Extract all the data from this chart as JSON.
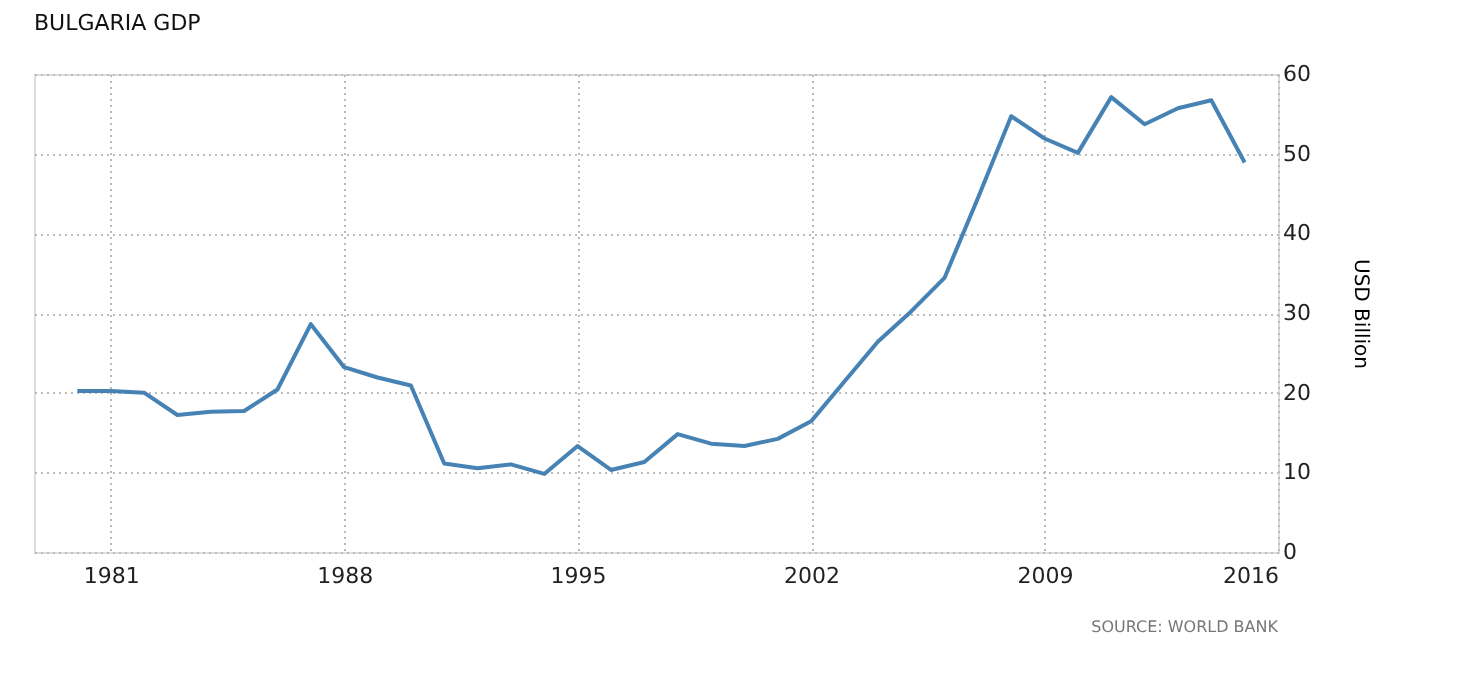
{
  "chart_data": {
    "type": "line",
    "title": "BULGARIA GDP",
    "ylabel": "USD Billion",
    "x": [
      1980,
      1981,
      1982,
      1983,
      1984,
      1985,
      1986,
      1987,
      1988,
      1989,
      1990,
      1991,
      1992,
      1993,
      1994,
      1995,
      1996,
      1997,
      1998,
      1999,
      2000,
      2001,
      2002,
      2003,
      2004,
      2005,
      2006,
      2007,
      2008,
      2009,
      2010,
      2011,
      2012,
      2013,
      2014,
      2015
    ],
    "series": [
      {
        "color": "#4682b4",
        "values": [
          20.2,
          20.2,
          20.0,
          17.2,
          17.6,
          17.7,
          20.4,
          28.6,
          23.2,
          21.9,
          20.9,
          11.1,
          10.5,
          11.0,
          9.8,
          13.3,
          10.3,
          11.3,
          14.8,
          13.6,
          13.3,
          14.2,
          16.4,
          21.4,
          26.4,
          30.2,
          34.4,
          44.4,
          54.7,
          51.9,
          50.1,
          57.1,
          53.7,
          55.7,
          56.7,
          48.9
        ]
      }
    ],
    "xlim": [
      1978.7,
      2016
    ],
    "xticks": [
      1981,
      1988,
      1995,
      2002,
      2009,
      2016
    ],
    "ylim": [
      0,
      60
    ],
    "yticks": [
      0,
      10,
      20,
      30,
      40,
      50,
      60
    ],
    "grid": true,
    "marker": "none",
    "line_style": "solid",
    "annotations": [
      "SOURCE: WORLD BANK"
    ]
  }
}
